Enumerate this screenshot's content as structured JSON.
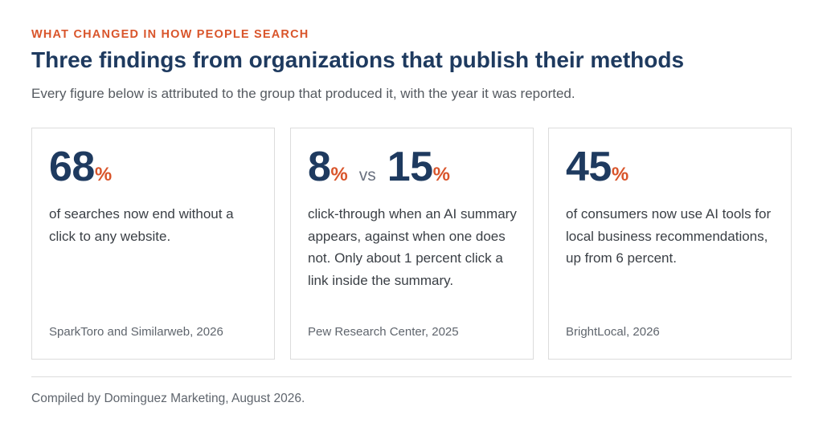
{
  "header": {
    "eyebrow": "WHAT CHANGED IN HOW PEOPLE SEARCH",
    "title": "Three findings from organizations that publish their methods",
    "subtitle": "Every figure below is attributed to the group that produced it, with the year it was reported."
  },
  "cards": [
    {
      "value": "68",
      "unit": "%",
      "description": "of searches now end without a click to any website.",
      "source": "SparkToro and Similarweb, 2026"
    },
    {
      "value": "8",
      "unit": "%",
      "comparison_word": "vs",
      "value_2": "15",
      "unit_2": "%",
      "description": "click-through when an AI summary appears, against when one does not. Only about 1 percent click a link inside the summary.",
      "source": "Pew Research Center, 2025"
    },
    {
      "value": "45",
      "unit": "%",
      "description": "of consumers now use AI tools for local business recommendations, up from 6 percent.",
      "source": "BrightLocal, 2026"
    }
  ],
  "footer": {
    "note": "Compiled by Dominguez Marketing, August 2026."
  },
  "colors": {
    "accent": "#d9552b",
    "heading": "#1e3a5f",
    "body_text": "#3a3f45",
    "muted_text": "#5f656d",
    "border": "#dcdcdc"
  }
}
